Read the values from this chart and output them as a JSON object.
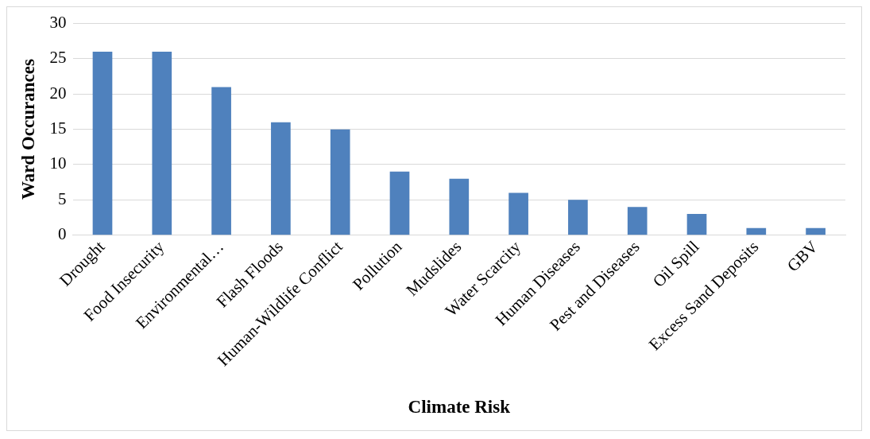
{
  "chart_data": {
    "type": "bar",
    "xlabel": "Climate Risk",
    "ylabel": "Ward Occurances",
    "categories": [
      "Drought",
      "Food Insecurity",
      "Environmental…",
      "Flash Floods",
      "Human-Wildlife Conflict",
      "Pollution",
      "Mudslides",
      "Water Scarcity",
      "Human Diseases",
      "Pest and Diseases",
      "Oil Spill",
      "Excess Sand Deposits",
      "GBV"
    ],
    "values": [
      26,
      26,
      21,
      16,
      15,
      9,
      8,
      6,
      5,
      4,
      3,
      1,
      1
    ],
    "color": "#4f81bd",
    "ylim": [
      0,
      30
    ],
    "yticks": [
      0,
      5,
      10,
      15,
      20,
      25,
      30
    ],
    "grid": "y",
    "legend": false
  }
}
